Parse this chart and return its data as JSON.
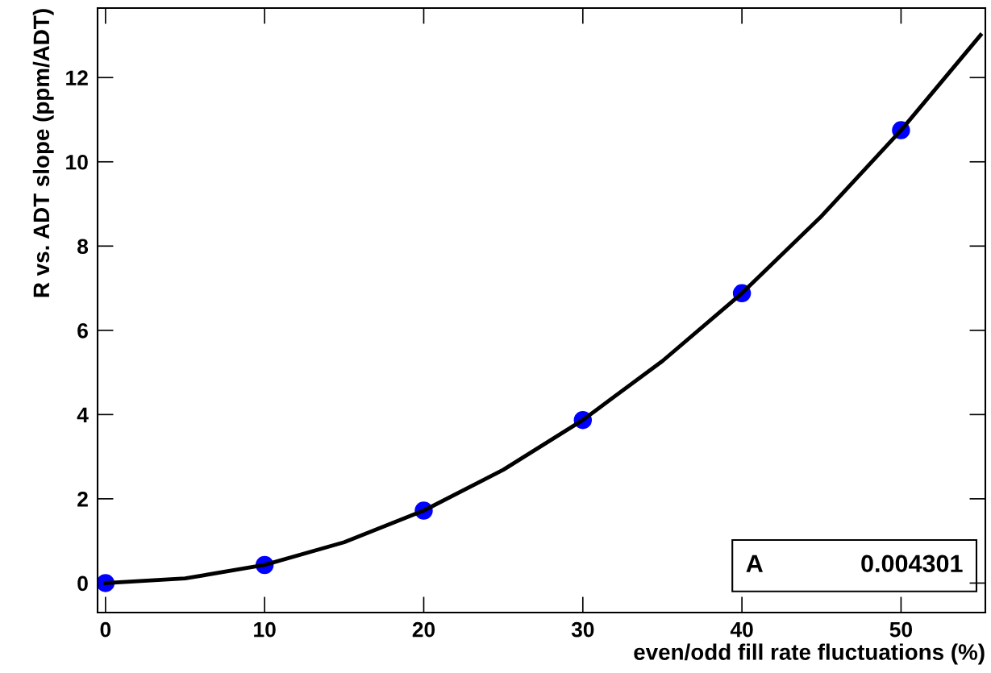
{
  "chart_data": {
    "type": "scatter",
    "xlabel": "even/odd fill rate fluctuations (%)",
    "ylabel": "R vs. ADT slope (ppm/ADT)",
    "x": [
      0,
      10,
      20,
      30,
      40,
      50
    ],
    "series": [
      {
        "color": "#0000ff",
        "marker": "circle",
        "values": [
          0,
          0.43,
          1.72,
          3.87,
          6.88,
          10.75
        ]
      },
      {
        "type": "line",
        "color": "#000000",
        "marker": "none",
        "line_style": "solid",
        "x": [
          0,
          5,
          10,
          15,
          20,
          25,
          30,
          35,
          40,
          45,
          50,
          55
        ],
        "values": [
          0,
          0.11,
          0.43,
          0.97,
          1.72,
          2.69,
          3.87,
          5.27,
          6.88,
          8.71,
          10.75,
          13.01
        ]
      }
    ],
    "xlim": [
      -0.5,
      55.3
    ],
    "xticks": [
      0,
      10,
      20,
      30,
      40,
      50
    ],
    "ylim": [
      -0.7,
      13.65
    ],
    "yticks": [
      0,
      2,
      4,
      6,
      8,
      10,
      12
    ],
    "grid": false,
    "annotations": [
      "A",
      "0.004301"
    ]
  }
}
